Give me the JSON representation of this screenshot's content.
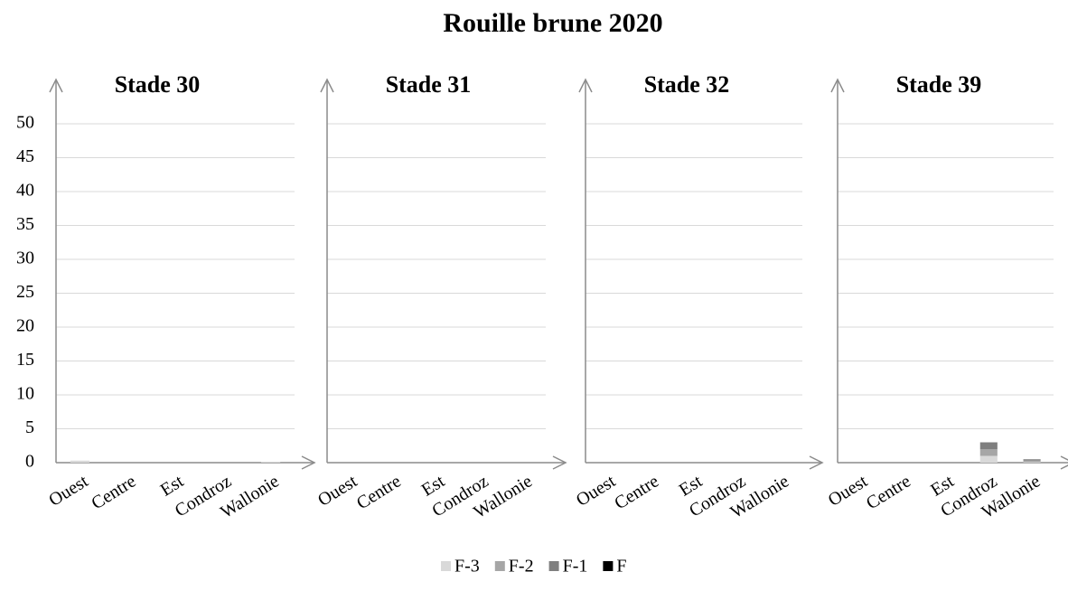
{
  "chart_data": {
    "type": "bar",
    "stacked": true,
    "title": "Rouille brune 2020",
    "ylim": [
      0,
      50
    ],
    "yticks": [
      0,
      5,
      10,
      15,
      20,
      25,
      30,
      35,
      40,
      45,
      50
    ],
    "grid": true,
    "legend": "bottom",
    "series": [
      {
        "name": "F-3",
        "color": "#d9d9d9"
      },
      {
        "name": "F-2",
        "color": "#a6a6a6"
      },
      {
        "name": "F-1",
        "color": "#7f7f7f"
      },
      {
        "name": "F",
        "color": "#000000"
      }
    ],
    "panels": [
      {
        "title": "Stade 30",
        "categories": [
          "Ouest",
          "Centre",
          "Est",
          "Condroz",
          "Wallonie"
        ],
        "series": [
          {
            "values": [
              0.3,
              0,
              0,
              0,
              0.1
            ]
          },
          {
            "values": [
              0,
              0,
              0,
              0,
              0
            ]
          },
          {
            "values": [
              0,
              0,
              0,
              0,
              0
            ]
          },
          {
            "values": [
              0,
              0,
              0,
              0,
              0
            ]
          }
        ]
      },
      {
        "title": "Stade 31",
        "categories": [
          "Ouest",
          "Centre",
          "Est",
          "Condroz",
          "Wallonie"
        ],
        "series": [
          {
            "values": [
              0,
              0,
              0,
              0,
              0
            ]
          },
          {
            "values": [
              0,
              0,
              0,
              0,
              0
            ]
          },
          {
            "values": [
              0,
              0,
              0,
              0,
              0
            ]
          },
          {
            "values": [
              0,
              0,
              0,
              0,
              0
            ]
          }
        ]
      },
      {
        "title": "Stade 32",
        "categories": [
          "Ouest",
          "Centre",
          "Est",
          "Condroz",
          "Wallonie"
        ],
        "series": [
          {
            "values": [
              0,
              0,
              0,
              0,
              0
            ]
          },
          {
            "values": [
              0,
              0,
              0,
              0,
              0
            ]
          },
          {
            "values": [
              0,
              0,
              0,
              0,
              0
            ]
          },
          {
            "values": [
              0,
              0,
              0,
              0,
              0
            ]
          }
        ]
      },
      {
        "title": "Stade 39",
        "categories": [
          "Ouest",
          "Centre",
          "Est",
          "Condroz",
          "Wallonie"
        ],
        "series": [
          {
            "values": [
              0,
              0,
              0,
              1,
              0.1
            ]
          },
          {
            "values": [
              0,
              0,
              0,
              1,
              0.2
            ]
          },
          {
            "values": [
              0,
              0,
              0,
              1,
              0.2
            ]
          },
          {
            "values": [
              0,
              0,
              0,
              0,
              0
            ]
          }
        ]
      }
    ]
  }
}
